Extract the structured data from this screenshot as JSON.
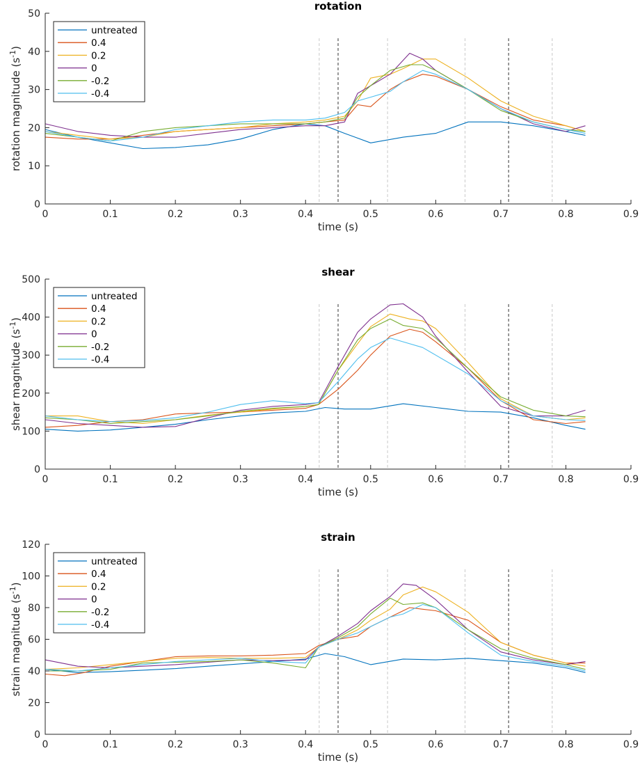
{
  "colors": {
    "untreated": "#0072BD",
    "0.4": "#D95319",
    "0.2": "#EDB120",
    "0": "#7E2F8E",
    "-0.2": "#77AC30",
    "-0.4": "#4DBEEE",
    "phase_marker_dark": "#333333",
    "phase_marker_light": "#c8c8c8"
  },
  "chart_data": [
    {
      "type": "line",
      "title": "rotation",
      "xlabel": "time (s)",
      "ylabel_main": "rotation magnitude (s",
      "ylabel_sup": "-1",
      "ylabel_close": ")",
      "xlim": [
        0,
        0.9
      ],
      "ylim": [
        0,
        50
      ],
      "xticks": [
        0,
        0.1,
        0.2,
        0.3,
        0.4,
        0.5,
        0.6,
        0.7,
        0.8,
        0.9
      ],
      "xtick_labels": [
        "0",
        "0.1",
        "0.2",
        "0.3",
        "0.4",
        "0.5",
        "0.6",
        "0.7",
        "0.8",
        "0.9"
      ],
      "yticks": [
        0,
        10,
        20,
        30,
        40,
        50
      ],
      "ytick_labels": [
        "0",
        "10",
        "20",
        "30",
        "40",
        "50"
      ],
      "legend": [
        "untreated",
        "0.4",
        "0.2",
        "0",
        "-0.2",
        "-0.4"
      ],
      "vlines_dark": [
        0.45,
        0.712
      ],
      "vlines_light": [
        0.421,
        0.526,
        0.645,
        0.779
      ],
      "series": [
        {
          "name": "untreated",
          "x": [
            0,
            0.05,
            0.1,
            0.15,
            0.2,
            0.25,
            0.3,
            0.35,
            0.4,
            0.43,
            0.46,
            0.5,
            0.55,
            0.6,
            0.65,
            0.7,
            0.75,
            0.8,
            0.83
          ],
          "y": [
            19.5,
            17.5,
            16,
            14.5,
            14.8,
            15.5,
            17,
            19.5,
            21,
            20.5,
            18.5,
            16,
            17.5,
            18.5,
            21.5,
            21.5,
            20.5,
            19,
            18
          ]
        },
        {
          "name": "0.4",
          "x": [
            0,
            0.05,
            0.1,
            0.15,
            0.2,
            0.25,
            0.3,
            0.35,
            0.4,
            0.43,
            0.46,
            0.48,
            0.5,
            0.53,
            0.55,
            0.58,
            0.6,
            0.65,
            0.7,
            0.75,
            0.8,
            0.83
          ],
          "y": [
            17.5,
            17,
            17,
            18,
            19,
            19.5,
            20,
            20.5,
            21,
            21.5,
            22,
            26,
            25.5,
            30,
            32,
            34,
            33.5,
            30,
            25.5,
            22,
            20.5,
            19
          ]
        },
        {
          "name": "0.2",
          "x": [
            0,
            0.05,
            0.1,
            0.15,
            0.2,
            0.25,
            0.3,
            0.35,
            0.4,
            0.43,
            0.46,
            0.48,
            0.5,
            0.53,
            0.55,
            0.58,
            0.6,
            0.65,
            0.7,
            0.75,
            0.8,
            0.83
          ],
          "y": [
            19,
            18,
            17,
            17.5,
            19,
            19.5,
            20,
            21,
            21.5,
            22,
            23,
            27,
            33,
            34,
            35.5,
            38,
            38,
            33,
            27,
            23,
            20.5,
            19
          ]
        },
        {
          "name": "0",
          "x": [
            0,
            0.05,
            0.1,
            0.15,
            0.2,
            0.25,
            0.3,
            0.35,
            0.4,
            0.43,
            0.46,
            0.48,
            0.5,
            0.53,
            0.56,
            0.58,
            0.6,
            0.65,
            0.7,
            0.75,
            0.8,
            0.83
          ],
          "y": [
            21,
            19,
            18,
            17.5,
            17.5,
            18.5,
            19.5,
            20,
            20.5,
            20.5,
            21.5,
            29,
            31,
            34,
            39.5,
            38,
            35,
            30,
            25,
            21,
            19,
            20.5
          ]
        },
        {
          "name": "-0.2",
          "x": [
            0,
            0.05,
            0.1,
            0.15,
            0.2,
            0.25,
            0.3,
            0.35,
            0.4,
            0.43,
            0.46,
            0.48,
            0.5,
            0.53,
            0.56,
            0.58,
            0.6,
            0.65,
            0.7,
            0.75,
            0.8,
            0.83
          ],
          "y": [
            18.5,
            17.5,
            16.5,
            19,
            20,
            20.5,
            21,
            21,
            21,
            21.5,
            22.5,
            28,
            31,
            35,
            36.5,
            36.5,
            35,
            30,
            24.5,
            21.5,
            19.5,
            19
          ]
        },
        {
          "name": "-0.4",
          "x": [
            0,
            0.05,
            0.1,
            0.15,
            0.2,
            0.25,
            0.3,
            0.35,
            0.4,
            0.43,
            0.46,
            0.48,
            0.5,
            0.53,
            0.55,
            0.58,
            0.6,
            0.65,
            0.7,
            0.75,
            0.8,
            0.83
          ],
          "y": [
            19,
            17.5,
            16.5,
            17.5,
            19.5,
            20.5,
            21.5,
            22,
            22,
            22.5,
            24,
            27,
            28,
            29.5,
            32,
            35,
            34,
            30,
            25,
            21.5,
            19.5,
            18.5
          ]
        }
      ]
    },
    {
      "type": "line",
      "title": "shear",
      "xlabel": "time (s)",
      "ylabel_main": "shear magnitude (s",
      "ylabel_sup": "-1",
      "ylabel_close": ")",
      "xlim": [
        0,
        0.9
      ],
      "ylim": [
        0,
        500
      ],
      "xticks": [
        0,
        0.1,
        0.2,
        0.3,
        0.4,
        0.5,
        0.6,
        0.7,
        0.8,
        0.9
      ],
      "xtick_labels": [
        "0",
        "0.1",
        "0.2",
        "0.3",
        "0.4",
        "0.5",
        "0.6",
        "0.7",
        "0.8",
        "0.9"
      ],
      "yticks": [
        0,
        100,
        200,
        300,
        400,
        500
      ],
      "ytick_labels": [
        "0",
        "100",
        "200",
        "300",
        "400",
        "500"
      ],
      "legend": [
        "untreated",
        "0.4",
        "0.2",
        "0",
        "-0.2",
        "-0.4"
      ],
      "vlines_dark": [
        0.45,
        0.712
      ],
      "vlines_light": [
        0.421,
        0.526,
        0.645,
        0.779
      ],
      "series": [
        {
          "name": "untreated",
          "x": [
            0,
            0.05,
            0.1,
            0.15,
            0.2,
            0.25,
            0.3,
            0.35,
            0.4,
            0.43,
            0.46,
            0.5,
            0.55,
            0.6,
            0.65,
            0.7,
            0.75,
            0.8,
            0.83
          ],
          "y": [
            105,
            100,
            103,
            110,
            118,
            130,
            140,
            148,
            152,
            162,
            158,
            158,
            172,
            162,
            152,
            150,
            135,
            115,
            105
          ]
        },
        {
          "name": "0.4",
          "x": [
            0,
            0.05,
            0.1,
            0.15,
            0.2,
            0.25,
            0.3,
            0.35,
            0.4,
            0.42,
            0.45,
            0.48,
            0.5,
            0.53,
            0.56,
            0.58,
            0.6,
            0.65,
            0.7,
            0.75,
            0.8,
            0.83
          ],
          "y": [
            110,
            115,
            125,
            130,
            145,
            148,
            150,
            155,
            160,
            170,
            210,
            260,
            300,
            350,
            368,
            360,
            335,
            265,
            180,
            130,
            120,
            125
          ]
        },
        {
          "name": "0.2",
          "x": [
            0,
            0.05,
            0.1,
            0.15,
            0.2,
            0.25,
            0.3,
            0.35,
            0.4,
            0.42,
            0.45,
            0.48,
            0.5,
            0.53,
            0.56,
            0.58,
            0.6,
            0.65,
            0.7,
            0.75,
            0.8,
            0.83
          ],
          "y": [
            140,
            140,
            125,
            120,
            130,
            142,
            150,
            158,
            165,
            170,
            260,
            330,
            375,
            408,
            395,
            390,
            370,
            280,
            185,
            140,
            130,
            135
          ]
        },
        {
          "name": "0",
          "x": [
            0,
            0.05,
            0.1,
            0.15,
            0.2,
            0.25,
            0.3,
            0.35,
            0.4,
            0.42,
            0.45,
            0.48,
            0.5,
            0.53,
            0.55,
            0.58,
            0.6,
            0.65,
            0.7,
            0.75,
            0.8,
            0.83
          ],
          "y": [
            130,
            120,
            115,
            110,
            112,
            135,
            155,
            165,
            170,
            175,
            270,
            360,
            395,
            432,
            435,
            400,
            350,
            255,
            165,
            140,
            140,
            155
          ]
        },
        {
          "name": "-0.2",
          "x": [
            0,
            0.05,
            0.1,
            0.15,
            0.2,
            0.25,
            0.3,
            0.35,
            0.4,
            0.42,
            0.45,
            0.48,
            0.5,
            0.53,
            0.55,
            0.58,
            0.6,
            0.65,
            0.7,
            0.75,
            0.8,
            0.83
          ],
          "y": [
            135,
            130,
            120,
            125,
            130,
            140,
            152,
            160,
            165,
            170,
            260,
            340,
            370,
            395,
            378,
            370,
            345,
            265,
            190,
            155,
            140,
            138
          ]
        },
        {
          "name": "-0.4",
          "x": [
            0,
            0.05,
            0.1,
            0.15,
            0.2,
            0.25,
            0.3,
            0.35,
            0.4,
            0.42,
            0.45,
            0.48,
            0.5,
            0.53,
            0.55,
            0.58,
            0.6,
            0.65,
            0.7,
            0.75,
            0.8,
            0.83
          ],
          "y": [
            140,
            130,
            125,
            128,
            135,
            150,
            170,
            180,
            172,
            175,
            230,
            290,
            320,
            345,
            335,
            320,
            300,
            250,
            180,
            140,
            130,
            128
          ]
        }
      ]
    },
    {
      "type": "line",
      "title": "strain",
      "xlabel": "time (s)",
      "ylabel_main": "strain magnitude (s",
      "ylabel_sup": "-1",
      "ylabel_close": ")",
      "xlim": [
        0,
        0.9
      ],
      "ylim": [
        0,
        120
      ],
      "xticks": [
        0,
        0.1,
        0.2,
        0.3,
        0.4,
        0.5,
        0.6,
        0.7,
        0.8,
        0.9
      ],
      "xtick_labels": [
        "0",
        "0.1",
        "0.2",
        "0.3",
        "0.4",
        "0.5",
        "0.6",
        "0.7",
        "0.8",
        "0.9"
      ],
      "yticks": [
        0,
        20,
        40,
        60,
        80,
        100,
        120
      ],
      "ytick_labels": [
        "0",
        "20",
        "40",
        "60",
        "80",
        "100",
        "120"
      ],
      "legend": [
        "untreated",
        "0.4",
        "0.2",
        "0",
        "-0.2",
        "-0.4"
      ],
      "vlines_dark": [
        0.45,
        0.712
      ],
      "vlines_light": [
        0.421,
        0.526,
        0.645,
        0.779
      ],
      "series": [
        {
          "name": "untreated",
          "x": [
            0,
            0.05,
            0.1,
            0.15,
            0.2,
            0.25,
            0.3,
            0.35,
            0.4,
            0.43,
            0.46,
            0.5,
            0.55,
            0.6,
            0.65,
            0.7,
            0.75,
            0.8,
            0.83
          ],
          "y": [
            41,
            39,
            39.5,
            40.5,
            41.5,
            43,
            44.5,
            46,
            47.5,
            51,
            49,
            44,
            47.5,
            47,
            48,
            46.5,
            45,
            42,
            39
          ]
        },
        {
          "name": "0.4",
          "x": [
            0,
            0.03,
            0.06,
            0.1,
            0.15,
            0.2,
            0.25,
            0.3,
            0.35,
            0.4,
            0.42,
            0.45,
            0.48,
            0.5,
            0.53,
            0.56,
            0.58,
            0.6,
            0.65,
            0.7,
            0.75,
            0.8,
            0.83
          ],
          "y": [
            38,
            37,
            39,
            43,
            46,
            49,
            49.5,
            49.5,
            50,
            51,
            56,
            60,
            62,
            68,
            74,
            80,
            79,
            78,
            72,
            58,
            50,
            45,
            45
          ]
        },
        {
          "name": "0.2",
          "x": [
            0,
            0.05,
            0.1,
            0.15,
            0.2,
            0.25,
            0.3,
            0.35,
            0.4,
            0.42,
            0.45,
            0.48,
            0.5,
            0.53,
            0.55,
            0.58,
            0.6,
            0.65,
            0.7,
            0.75,
            0.8,
            0.83
          ],
          "y": [
            41,
            42,
            44,
            46,
            48,
            48.5,
            48,
            48,
            48.5,
            55,
            60,
            66,
            72,
            79,
            88,
            93,
            90,
            77,
            58,
            50,
            45,
            43
          ]
        },
        {
          "name": "0",
          "x": [
            0,
            0.05,
            0.1,
            0.15,
            0.2,
            0.25,
            0.3,
            0.35,
            0.4,
            0.42,
            0.45,
            0.48,
            0.5,
            0.53,
            0.55,
            0.57,
            0.6,
            0.65,
            0.7,
            0.75,
            0.8,
            0.83
          ],
          "y": [
            47,
            43,
            42,
            43,
            44,
            45.5,
            47,
            46.5,
            47,
            55,
            62,
            70,
            78,
            87,
            95,
            94,
            85,
            66,
            52,
            47,
            44,
            46
          ]
        },
        {
          "name": "-0.2",
          "x": [
            0,
            0.05,
            0.1,
            0.15,
            0.2,
            0.25,
            0.3,
            0.35,
            0.4,
            0.42,
            0.45,
            0.48,
            0.5,
            0.53,
            0.55,
            0.58,
            0.6,
            0.65,
            0.7,
            0.75,
            0.8,
            0.83
          ],
          "y": [
            40,
            40,
            41,
            45,
            45.5,
            46,
            47,
            45,
            42,
            55,
            61,
            68,
            76,
            86,
            82,
            83,
            80,
            66,
            54,
            48,
            44,
            41
          ]
        },
        {
          "name": "-0.4",
          "x": [
            0,
            0.05,
            0.1,
            0.15,
            0.2,
            0.25,
            0.3,
            0.35,
            0.4,
            0.42,
            0.45,
            0.48,
            0.5,
            0.53,
            0.55,
            0.58,
            0.6,
            0.65,
            0.7,
            0.75,
            0.8,
            0.83
          ],
          "y": [
            41,
            40,
            42,
            44,
            46,
            47,
            48,
            46,
            45,
            55,
            60,
            64,
            68,
            74,
            76,
            82,
            80,
            64,
            50,
            46,
            43,
            40
          ]
        }
      ]
    }
  ]
}
